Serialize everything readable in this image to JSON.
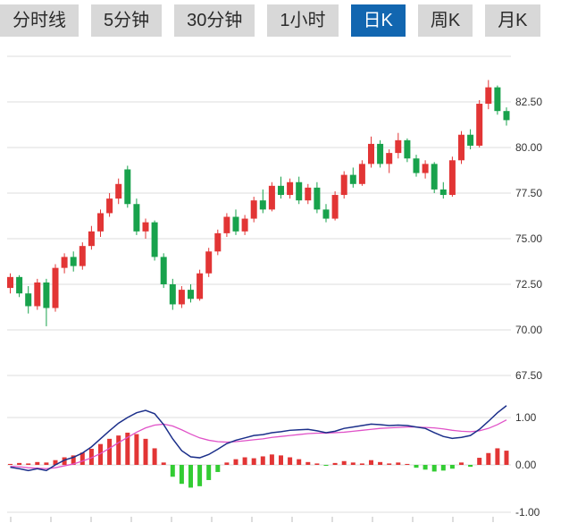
{
  "tabs": {
    "items": [
      {
        "id": "timeline",
        "label": "分时线",
        "active": false
      },
      {
        "id": "min5",
        "label": "5分钟",
        "active": false
      },
      {
        "id": "min30",
        "label": "30分钟",
        "active": false
      },
      {
        "id": "hour1",
        "label": "1小时",
        "active": false
      },
      {
        "id": "dayK",
        "label": "日K",
        "active": true
      },
      {
        "id": "weekK",
        "label": "周K",
        "active": false
      },
      {
        "id": "monthK",
        "label": "月K",
        "active": false
      }
    ]
  },
  "price_axis": {
    "labels": [
      "82.50",
      "80.00",
      "77.50",
      "75.00",
      "72.50",
      "70.00",
      "67.50"
    ]
  },
  "macd_axis": {
    "labels": [
      "1.00",
      "0.00",
      "-1.00"
    ]
  },
  "colors": {
    "up": "#e23535",
    "down": "#18a24c",
    "macd_up": "#e23535",
    "macd_down": "#33cc33",
    "dif_line": "#1b2f8a",
    "dea_line": "#e052c8",
    "grid": "#dddddd",
    "tick": "#bbbbbb",
    "tab_bg": "#d8d8d8",
    "tab_active_bg": "#1266b0",
    "axis_text": "#333333"
  },
  "chart_data": {
    "type": "candlestick",
    "title": "",
    "price_pane": {
      "ylim": [
        66.2,
        85.0
      ],
      "gridlines": [
        82.5,
        80.0,
        77.5,
        75.0,
        72.5,
        70.0,
        67.5
      ],
      "candles_ohlc": [
        [
          72.3,
          73.1,
          72.0,
          72.9
        ],
        [
          72.9,
          73.0,
          71.8,
          72.0
        ],
        [
          72.0,
          72.4,
          70.9,
          71.3
        ],
        [
          71.3,
          72.8,
          71.1,
          72.6
        ],
        [
          72.6,
          72.8,
          70.2,
          71.2
        ],
        [
          71.2,
          73.6,
          71.0,
          73.4
        ],
        [
          73.4,
          74.2,
          73.1,
          74.0
        ],
        [
          74.0,
          74.3,
          73.2,
          73.5
        ],
        [
          73.5,
          74.8,
          73.3,
          74.6
        ],
        [
          74.6,
          75.7,
          74.4,
          75.4
        ],
        [
          75.4,
          76.6,
          75.1,
          76.4
        ],
        [
          76.4,
          77.5,
          76.2,
          77.2
        ],
        [
          77.2,
          78.3,
          76.9,
          78.0
        ],
        [
          78.8,
          79.0,
          76.7,
          76.9
        ],
        [
          76.9,
          77.2,
          75.2,
          75.4
        ],
        [
          75.4,
          76.1,
          75.0,
          75.9
        ],
        [
          75.9,
          76.0,
          73.8,
          74.0
        ],
        [
          74.0,
          74.2,
          72.3,
          72.5
        ],
        [
          72.5,
          72.8,
          71.1,
          71.4
        ],
        [
          71.4,
          72.4,
          71.2,
          72.2
        ],
        [
          72.2,
          72.5,
          71.5,
          71.7
        ],
        [
          71.7,
          73.3,
          71.6,
          73.1
        ],
        [
          73.1,
          74.5,
          72.9,
          74.3
        ],
        [
          74.3,
          75.5,
          74.1,
          75.3
        ],
        [
          75.3,
          76.4,
          75.1,
          76.2
        ],
        [
          76.2,
          76.6,
          75.2,
          75.4
        ],
        [
          75.4,
          76.3,
          75.2,
          76.1
        ],
        [
          76.1,
          77.3,
          75.9,
          77.1
        ],
        [
          77.1,
          77.7,
          76.4,
          76.6
        ],
        [
          76.6,
          78.1,
          76.5,
          77.9
        ],
        [
          77.9,
          78.4,
          77.2,
          77.4
        ],
        [
          77.4,
          78.3,
          77.2,
          78.1
        ],
        [
          78.1,
          78.4,
          76.9,
          77.1
        ],
        [
          77.1,
          78.0,
          76.9,
          77.8
        ],
        [
          77.8,
          78.1,
          76.4,
          76.6
        ],
        [
          76.6,
          76.9,
          75.9,
          76.1
        ],
        [
          76.1,
          77.6,
          76.0,
          77.4
        ],
        [
          77.4,
          78.7,
          77.2,
          78.5
        ],
        [
          78.5,
          78.9,
          77.8,
          78.0
        ],
        [
          78.0,
          79.3,
          77.9,
          79.1
        ],
        [
          79.1,
          80.6,
          78.9,
          80.2
        ],
        [
          80.2,
          80.4,
          78.9,
          79.1
        ],
        [
          79.1,
          79.9,
          78.6,
          79.7
        ],
        [
          79.7,
          80.8,
          79.4,
          80.4
        ],
        [
          80.4,
          80.5,
          79.2,
          79.4
        ],
        [
          79.4,
          79.6,
          78.4,
          78.6
        ],
        [
          78.6,
          79.3,
          78.3,
          79.1
        ],
        [
          79.1,
          79.2,
          77.5,
          77.7
        ],
        [
          77.7,
          78.1,
          77.2,
          77.4
        ],
        [
          77.4,
          79.5,
          77.3,
          79.3
        ],
        [
          79.3,
          80.9,
          79.1,
          80.7
        ],
        [
          80.7,
          81.0,
          79.9,
          80.1
        ],
        [
          80.1,
          82.6,
          80.0,
          82.4
        ],
        [
          82.4,
          83.7,
          82.1,
          83.3
        ],
        [
          83.3,
          83.4,
          81.8,
          82.0
        ],
        [
          82.0,
          82.2,
          81.2,
          81.5
        ]
      ]
    },
    "macd_pane": {
      "ylim": [
        -1.3,
        1.45
      ],
      "gridlines": [
        1.0,
        0.0,
        -1.0
      ],
      "dif": [
        -0.05,
        -0.08,
        -0.12,
        -0.08,
        -0.12,
        0.0,
        0.1,
        0.16,
        0.25,
        0.38,
        0.55,
        0.72,
        0.88,
        1.0,
        1.1,
        1.15,
        1.08,
        0.85,
        0.55,
        0.3,
        0.17,
        0.15,
        0.22,
        0.33,
        0.45,
        0.52,
        0.57,
        0.62,
        0.64,
        0.68,
        0.7,
        0.73,
        0.74,
        0.75,
        0.72,
        0.68,
        0.71,
        0.77,
        0.8,
        0.83,
        0.86,
        0.85,
        0.83,
        0.84,
        0.83,
        0.8,
        0.77,
        0.68,
        0.6,
        0.56,
        0.58,
        0.62,
        0.75,
        0.92,
        1.1,
        1.25
      ],
      "dea": [
        -0.03,
        -0.04,
        -0.06,
        -0.07,
        -0.08,
        -0.06,
        -0.02,
        0.02,
        0.08,
        0.15,
        0.24,
        0.35,
        0.47,
        0.58,
        0.69,
        0.78,
        0.84,
        0.86,
        0.82,
        0.74,
        0.65,
        0.57,
        0.52,
        0.49,
        0.48,
        0.49,
        0.51,
        0.53,
        0.55,
        0.58,
        0.6,
        0.62,
        0.64,
        0.66,
        0.67,
        0.67,
        0.68,
        0.69,
        0.71,
        0.73,
        0.75,
        0.77,
        0.78,
        0.79,
        0.8,
        0.8,
        0.79,
        0.78,
        0.76,
        0.73,
        0.71,
        0.7,
        0.72,
        0.77,
        0.85,
        0.95
      ],
      "histogram": [
        0.02,
        0.04,
        0.03,
        0.06,
        0.05,
        0.1,
        0.16,
        0.2,
        0.26,
        0.34,
        0.44,
        0.55,
        0.62,
        0.68,
        0.65,
        0.55,
        0.35,
        0.05,
        -0.25,
        -0.4,
        -0.48,
        -0.45,
        -0.32,
        -0.15,
        0.05,
        0.12,
        0.16,
        0.14,
        0.18,
        0.22,
        0.2,
        0.16,
        0.12,
        0.06,
        0.03,
        -0.02,
        0.04,
        0.08,
        0.05,
        0.03,
        0.1,
        0.06,
        0.03,
        0.05,
        0.02,
        -0.06,
        -0.1,
        -0.14,
        -0.12,
        -0.08,
        0.05,
        -0.04,
        0.15,
        0.25,
        0.35,
        0.3
      ]
    }
  }
}
